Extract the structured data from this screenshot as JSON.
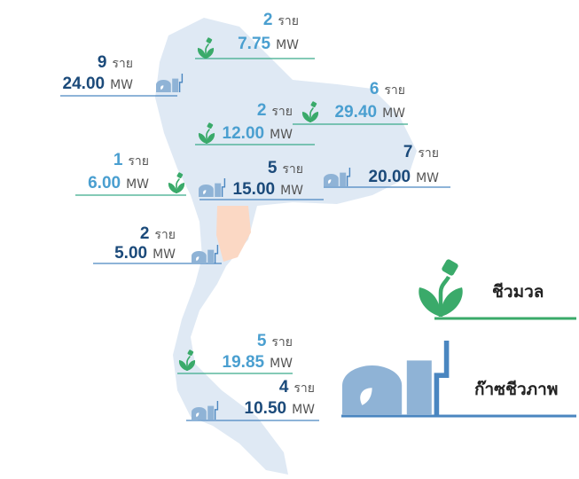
{
  "count_unit": "ราย",
  "power_unit": "MW",
  "markers": [
    {
      "count": 2,
      "mw": "7.75",
      "kind": "biomass"
    },
    {
      "count": 9,
      "mw": "24.00",
      "kind": "biogas"
    },
    {
      "count": 6,
      "mw": "29.40",
      "kind": "biomass"
    },
    {
      "count": 2,
      "mw": "12.00",
      "kind": "biomass"
    },
    {
      "count": 1,
      "mw": "6.00",
      "kind": "biomass"
    },
    {
      "count": 5,
      "mw": "15.00",
      "kind": "biogas"
    },
    {
      "count": 7,
      "mw": "20.00",
      "kind": "biogas"
    },
    {
      "count": 2,
      "mw": "5.00",
      "kind": "biogas"
    },
    {
      "count": 5,
      "mw": "19.85",
      "kind": "biomass"
    },
    {
      "count": 4,
      "mw": "10.50",
      "kind": "biogas"
    }
  ],
  "legend": {
    "biomass": "ชีวมวล",
    "biogas": "ก๊าซชีวภาพ"
  }
}
